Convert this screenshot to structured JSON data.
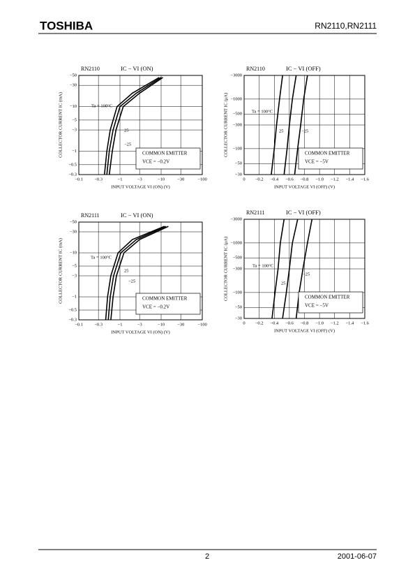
{
  "header": {
    "logo": "TOSHIBA",
    "part": "RN2110,RN2111"
  },
  "footer": {
    "page": "2",
    "date": "2001-06-07"
  },
  "chart_data": [
    {
      "type": "line",
      "subtitle": "RN2110",
      "title": "IC − VI (ON)",
      "xlabel": "INPUT VOLTAGE  VI (ON)  (V)",
      "ylabel": "COLLECTOR CURRENT  IC  (mA)",
      "xscale": "log",
      "yscale": "log",
      "grid": true,
      "xlim": [
        -0.1,
        -100
      ],
      "ylim": [
        -0.3,
        -50
      ],
      "xticks": [
        {
          "value": -0.1,
          "label": "−0.1"
        },
        {
          "value": -0.3,
          "label": "−0.3"
        },
        {
          "value": -1,
          "label": "−1"
        },
        {
          "value": -3,
          "label": "−3"
        },
        {
          "value": -10,
          "label": "−10"
        },
        {
          "value": -30,
          "label": "−30"
        },
        {
          "value": -100,
          "label": "−100"
        }
      ],
      "yticks": [
        {
          "value": -0.3,
          "label": "−0.3"
        },
        {
          "value": -0.5,
          "label": "−0.5"
        },
        {
          "value": -1,
          "label": "−1"
        },
        {
          "value": -3,
          "label": "−3"
        },
        {
          "value": -5,
          "label": "−5"
        },
        {
          "value": -10,
          "label": "−10"
        },
        {
          "value": -30,
          "label": "−30"
        },
        {
          "value": -50,
          "label": "−50"
        }
      ],
      "annotation_box": [
        "COMMON EMITTER",
        "VCE = −0.2V"
      ],
      "series": [
        {
          "name": "Ta = 100°C",
          "color": "#000000",
          "x": [
            -0.42,
            -0.48,
            -0.58,
            -0.85,
            -2,
            -9
          ],
          "values": [
            -0.3,
            -1,
            -3,
            -10,
            -20,
            -45
          ]
        },
        {
          "name": "25",
          "color": "#000000",
          "x": [
            -0.48,
            -0.55,
            -0.68,
            -1.0,
            -2.5,
            -10
          ],
          "values": [
            -0.3,
            -1,
            -3,
            -10,
            -20,
            -45
          ]
        },
        {
          "name": "−25",
          "color": "#000000",
          "x": [
            -0.55,
            -0.65,
            -0.8,
            -1.2,
            -3,
            -11
          ],
          "values": [
            -0.3,
            -1,
            -3,
            -10,
            -20,
            -45
          ]
        }
      ]
    },
    {
      "type": "line",
      "subtitle": "RN2110",
      "title": "IC − VI (OFF)",
      "xlabel": "INPUT VOLTAGE  VI (OFF)  (V)",
      "ylabel": "COLLECTOR CURRENT  IC  (μA)",
      "xscale": "linear",
      "yscale": "log",
      "grid": true,
      "xlim": [
        0,
        -1.6
      ],
      "ylim": [
        -30,
        -3000
      ],
      "xticks": [
        0,
        {
          "value": -0.2,
          "label": "−0.2"
        },
        {
          "value": -0.4,
          "label": "−0.4"
        },
        {
          "value": -0.6,
          "label": "−0.6"
        },
        {
          "value": -0.8,
          "label": "−0.8"
        },
        {
          "value": -1.0,
          "label": "−1.0"
        },
        {
          "value": -1.2,
          "label": "−1.2"
        },
        {
          "value": -1.4,
          "label": "−1.4"
        },
        {
          "value": -1.6,
          "label": "−1.6"
        }
      ],
      "yticks": [
        {
          "value": -30,
          "label": "−30"
        },
        {
          "value": -50,
          "label": "−50"
        },
        {
          "value": -100,
          "label": "−100"
        },
        {
          "value": -300,
          "label": "−300"
        },
        {
          "value": -500,
          "label": "−500"
        },
        {
          "value": -1000,
          "label": "−1000"
        },
        {
          "value": -3000,
          "label": "−3000"
        }
      ],
      "annotation_box": [
        "COMMON EMITTER",
        "VCE = −5V"
      ],
      "series": [
        {
          "name": "Ta = 100°C",
          "color": "#000000",
          "x": [
            -0.36,
            -0.4,
            -0.43,
            -0.47,
            -0.51
          ],
          "values": [
            -30,
            -100,
            -300,
            -1000,
            -3000
          ]
        },
        {
          "name": "25",
          "color": "#000000",
          "x": [
            -0.53,
            -0.57,
            -0.6,
            -0.64,
            -0.69
          ],
          "values": [
            -30,
            -100,
            -300,
            -1000,
            -3000
          ]
        },
        {
          "name": "−25",
          "color": "#000000",
          "x": [
            -0.67,
            -0.71,
            -0.75,
            -0.79,
            -0.84
          ],
          "values": [
            -30,
            -100,
            -300,
            -1000,
            -3000
          ]
        }
      ]
    },
    {
      "type": "line",
      "subtitle": "RN2111",
      "title": "IC − VI (ON)",
      "xlabel": "INPUT VOLTAGE  VI (ON)  (V)",
      "ylabel": "COLLECTOR CURRENT  IC  (mA)",
      "xscale": "log",
      "yscale": "log",
      "grid": true,
      "xlim": [
        -0.1,
        -100
      ],
      "ylim": [
        -0.3,
        -50
      ],
      "xticks": [
        {
          "value": -0.1,
          "label": "−0.1"
        },
        {
          "value": -0.3,
          "label": "−0.3"
        },
        {
          "value": -1,
          "label": "−1"
        },
        {
          "value": -3,
          "label": "−3"
        },
        {
          "value": -10,
          "label": "−10"
        },
        {
          "value": -30,
          "label": "−30"
        },
        {
          "value": -100,
          "label": "−100"
        }
      ],
      "yticks": [
        {
          "value": -0.3,
          "label": "−0.3"
        },
        {
          "value": -0.5,
          "label": "−0.5"
        },
        {
          "value": -1,
          "label": "−1"
        },
        {
          "value": -3,
          "label": "−3"
        },
        {
          "value": -5,
          "label": "−5"
        },
        {
          "value": -10,
          "label": "−10"
        },
        {
          "value": -30,
          "label": "−30"
        },
        {
          "value": -50,
          "label": "−50"
        }
      ],
      "annotation_box": [
        "COMMON EMITTER",
        "VCE = −0.2V"
      ],
      "series": [
        {
          "name": "Ta = 100°C",
          "color": "#000000",
          "x": [
            -0.45,
            -0.5,
            -0.6,
            -0.9,
            -2,
            -12
          ],
          "values": [
            -0.3,
            -1,
            -3,
            -10,
            -20,
            -40
          ]
        },
        {
          "name": "25",
          "color": "#000000",
          "x": [
            -0.52,
            -0.58,
            -0.7,
            -1.05,
            -2.5,
            -13
          ],
          "values": [
            -0.3,
            -1,
            -3,
            -10,
            -20,
            -40
          ]
        },
        {
          "name": "−25",
          "color": "#000000",
          "x": [
            -0.6,
            -0.68,
            -0.82,
            -1.25,
            -3,
            -15
          ],
          "values": [
            -0.3,
            -1,
            -3,
            -10,
            -20,
            -40
          ]
        }
      ]
    },
    {
      "type": "line",
      "subtitle": "RN2111",
      "title": "IC − VI (OFF)",
      "xlabel": "INPUT VOLTAGE  VI (OFF)  (V)",
      "ylabel": "COLLECTOR CURRENT  IC  (μA)",
      "xscale": "linear",
      "yscale": "log",
      "grid": true,
      "xlim": [
        0,
        -1.6
      ],
      "ylim": [
        -30,
        -3000
      ],
      "xticks": [
        0,
        {
          "value": -0.2,
          "label": "−0.2"
        },
        {
          "value": -0.4,
          "label": "−0.4"
        },
        {
          "value": -0.6,
          "label": "−0.6"
        },
        {
          "value": -0.8,
          "label": "−0.8"
        },
        {
          "value": -1.0,
          "label": "−1.0"
        },
        {
          "value": -1.2,
          "label": "−1.2"
        },
        {
          "value": -1.4,
          "label": "−1.4"
        },
        {
          "value": -1.6,
          "label": "−1.6"
        }
      ],
      "yticks": [
        {
          "value": -30,
          "label": "−30"
        },
        {
          "value": -50,
          "label": "−50"
        },
        {
          "value": -100,
          "label": "−100"
        },
        {
          "value": -300,
          "label": "−300"
        },
        {
          "value": -500,
          "label": "−500"
        },
        {
          "value": -1000,
          "label": "−1000"
        },
        {
          "value": -3000,
          "label": "−3000"
        }
      ],
      "annotation_box": [
        "COMMON EMITTER",
        "VCE = −5V"
      ],
      "series": [
        {
          "name": "Ta = 100°C",
          "color": "#000000",
          "x": [
            -0.37,
            -0.41,
            -0.45,
            -0.48,
            -0.53
          ],
          "values": [
            -30,
            -100,
            -300,
            -1000,
            -3000
          ]
        },
        {
          "name": "25",
          "color": "#000000",
          "x": [
            -0.51,
            -0.56,
            -0.6,
            -0.64,
            -0.71
          ],
          "values": [
            -30,
            -100,
            -300,
            -1000,
            -3000
          ]
        },
        {
          "name": "−25",
          "color": "#000000",
          "x": [
            -0.69,
            -0.73,
            -0.78,
            -0.84,
            -0.9
          ],
          "values": [
            -30,
            -100,
            -300,
            -1000,
            -3000
          ]
        }
      ]
    }
  ]
}
